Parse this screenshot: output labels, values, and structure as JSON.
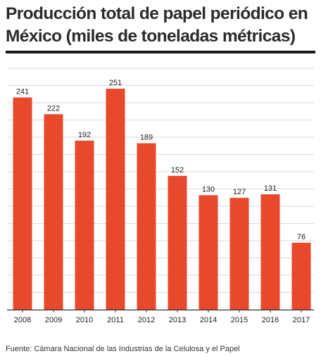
{
  "title": "Producción total de papel periódico en México (miles de toneladas métricas)",
  "source": "Fuente: Cámara Nacional de las Industrias de la Celulosa y el Papel",
  "colors": {
    "bar": "#e8492d",
    "grid": "#d9d9d9",
    "axis": "#333333",
    "title_rule": "#1a1a1a"
  },
  "chart_data": {
    "type": "bar",
    "title": "Producción total de papel periódico en México (miles de toneladas métricas)",
    "categories": [
      "2008",
      "2009",
      "2010",
      "2011",
      "2012",
      "2013",
      "2014",
      "2015",
      "2016",
      "2017"
    ],
    "values": [
      241,
      222,
      192,
      251,
      189,
      152,
      130,
      127,
      131,
      76
    ],
    "xlabel": "",
    "ylabel": "",
    "ylim": [
      0,
      275
    ],
    "grid": true,
    "y_tick_labels_shown": false,
    "data_labels": true,
    "legend": "none"
  }
}
